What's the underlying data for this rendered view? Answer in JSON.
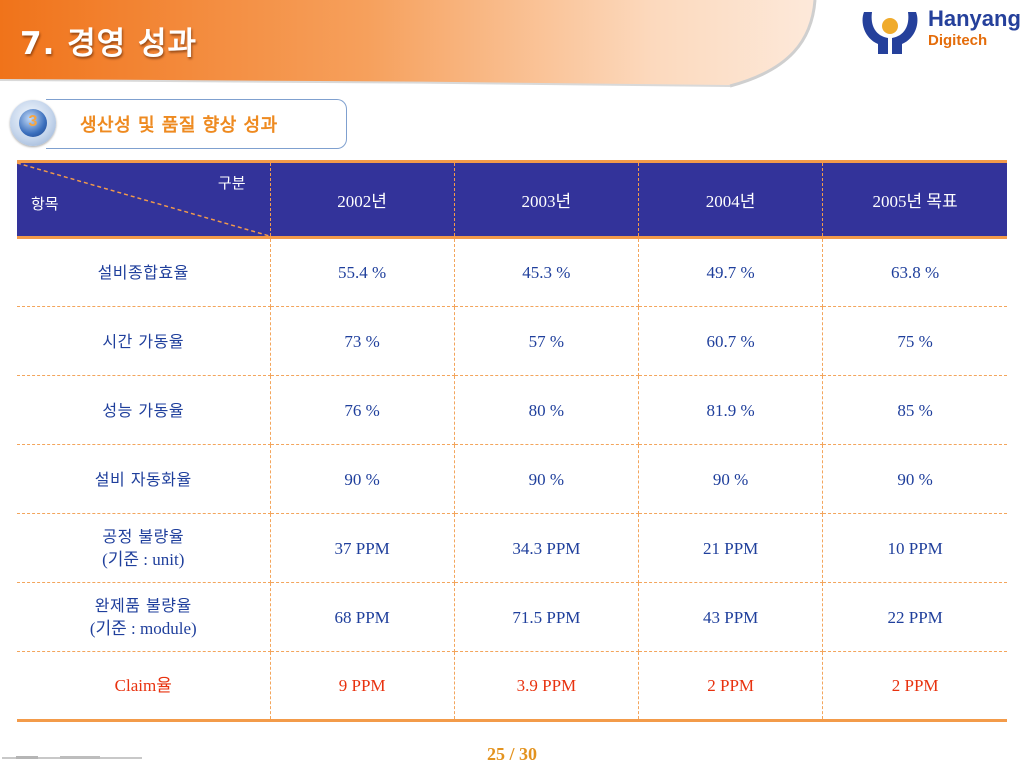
{
  "header": {
    "title": "7. 경영 성과",
    "logo_line1": "Hanyang",
    "logo_line2": "Digitech"
  },
  "section": {
    "number": "3",
    "title": "생산성 및 품질 향상 성과"
  },
  "table": {
    "corner_top": "구분",
    "corner_bottom": "항목",
    "columns": [
      "2002년",
      "2003년",
      "2004년",
      "2005년 목표"
    ],
    "rows": [
      {
        "label": "설비종합효율",
        "label2": "",
        "values": [
          "55.4 %",
          "45.3 %",
          "49.7 %",
          "63.8 %"
        ]
      },
      {
        "label": "시간 가동율",
        "label2": "",
        "values": [
          "73 %",
          "57 %",
          "60.7 %",
          "75 %"
        ]
      },
      {
        "label": "성능 가동율",
        "label2": "",
        "values": [
          "76 %",
          "80 %",
          "81.9 %",
          "85 %"
        ]
      },
      {
        "label": "설비 자동화율",
        "label2": "",
        "values": [
          "90 %",
          "90 %",
          "90 %",
          "90 %"
        ]
      },
      {
        "label": "공정 불량율",
        "label2": "(기준 : unit)",
        "values": [
          "37 PPM",
          "34.3 PPM",
          "21 PPM",
          "10 PPM"
        ]
      },
      {
        "label": "완제품 불량율",
        "label2": "(기준 : module)",
        "values": [
          "68 PPM",
          "71.5 PPM",
          "43 PPM",
          "22 PPM"
        ]
      },
      {
        "label": "Claim율",
        "label2": "",
        "values": [
          "9 PPM",
          "3.9 PPM",
          "2 PPM",
          "2 PPM"
        ]
      }
    ],
    "highlight_color": "#e8320f",
    "text_color": "#1f3f9c",
    "header_bg": "#33339a"
  },
  "footer": {
    "page": "25 / 30"
  },
  "colors": {
    "accent_orange": "#f39b4a",
    "brand_blue": "#25409b"
  }
}
